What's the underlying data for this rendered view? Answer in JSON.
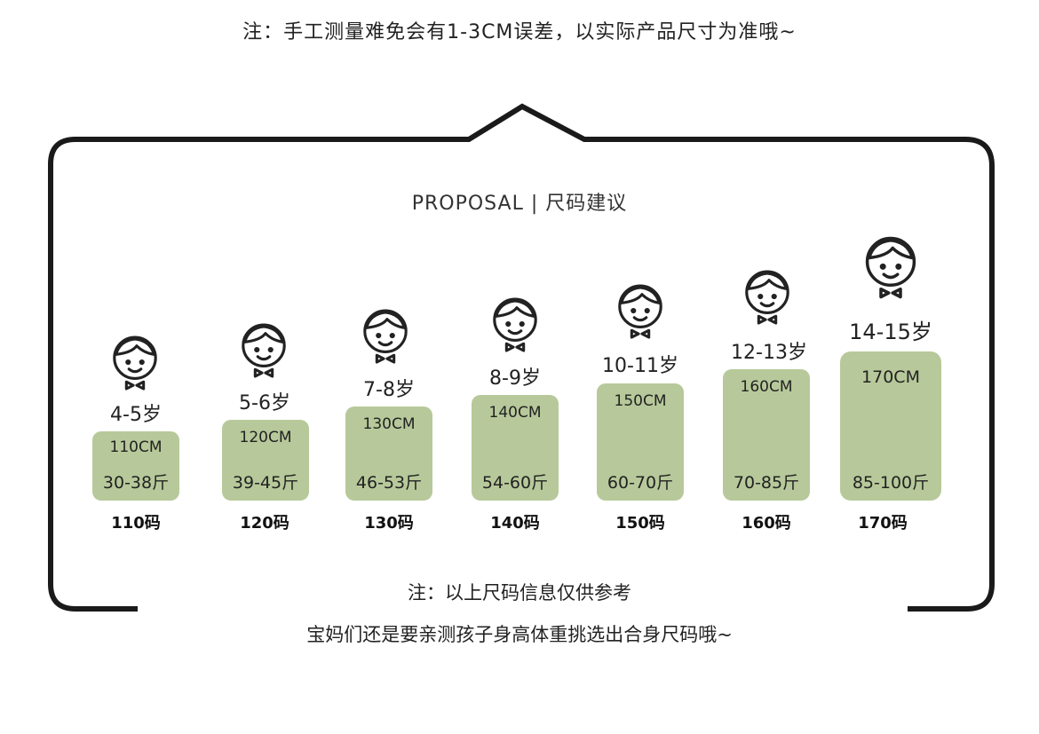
{
  "top_note": "注：手工测量难免会有1-3CM误差，以实际产品尺寸为准哦~",
  "title": "PROPOSAL | 尺码建议",
  "sizes": [
    {
      "age": "4-5岁",
      "height": "110CM",
      "weight": "30-38斤",
      "size": "110码"
    },
    {
      "age": "5-6岁",
      "height": "120CM",
      "weight": "39-45斤",
      "size": "120码"
    },
    {
      "age": "7-8岁",
      "height": "130CM",
      "weight": "46-53斤",
      "size": "130码"
    },
    {
      "age": "8-9岁",
      "height": "140CM",
      "weight": "54-60斤",
      "size": "140码"
    },
    {
      "age": "10-11岁",
      "height": "150CM",
      "weight": "60-70斤",
      "size": "150码"
    },
    {
      "age": "12-13岁",
      "height": "160CM",
      "weight": "70-85斤",
      "size": "160码"
    },
    {
      "age": "14-15岁",
      "height": "170CM",
      "weight": "85-100斤",
      "size": "170码"
    }
  ],
  "bottom_note_line1": "注：以上尺码信息仅供参考",
  "bottom_note_line2": "宝妈们还是要亲测孩子身高体重挑选出合身尺码哦~",
  "colors": {
    "box": "#b7c99a",
    "frame": "#1a1a1a"
  },
  "icon": "boy-face-with-bowtie-icon"
}
